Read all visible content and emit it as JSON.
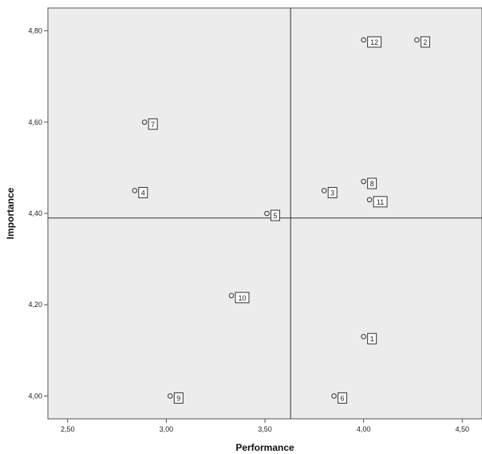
{
  "chart_data": {
    "type": "scatter",
    "title": "",
    "xlabel": "Performance",
    "ylabel": "Importance",
    "xlim": [
      2.4,
      4.6
    ],
    "ylim": [
      3.95,
      4.85
    ],
    "xticks": [
      2.5,
      3.0,
      3.5,
      4.0,
      4.5
    ],
    "xtick_labels": [
      "2,50",
      "3,00",
      "3,50",
      "4,00",
      "4,50"
    ],
    "yticks": [
      4.0,
      4.2,
      4.4,
      4.6,
      4.8
    ],
    "ytick_labels": [
      "4,00",
      "4,20",
      "4,40",
      "4,60",
      "4,80"
    ],
    "ref_lines": {
      "x": 3.63,
      "y": 4.39
    },
    "grid": false,
    "legend": "none",
    "colors": {
      "plot_bg": "#ececec",
      "marker": "#333333",
      "ref_line": "#333333"
    },
    "points": [
      {
        "label": "12",
        "x": 4.0,
        "y": 4.78
      },
      {
        "label": "2",
        "x": 4.27,
        "y": 4.78
      },
      {
        "label": "7",
        "x": 2.89,
        "y": 4.6
      },
      {
        "label": "8",
        "x": 4.0,
        "y": 4.47
      },
      {
        "label": "4",
        "x": 2.84,
        "y": 4.45
      },
      {
        "label": "3",
        "x": 3.8,
        "y": 4.45
      },
      {
        "label": "11",
        "x": 4.03,
        "y": 4.43
      },
      {
        "label": "5",
        "x": 3.51,
        "y": 4.4
      },
      {
        "label": "10",
        "x": 3.33,
        "y": 4.22
      },
      {
        "label": "1",
        "x": 4.0,
        "y": 4.13
      },
      {
        "label": "9",
        "x": 3.02,
        "y": 4.0
      },
      {
        "label": "6",
        "x": 3.85,
        "y": 4.0
      }
    ]
  }
}
